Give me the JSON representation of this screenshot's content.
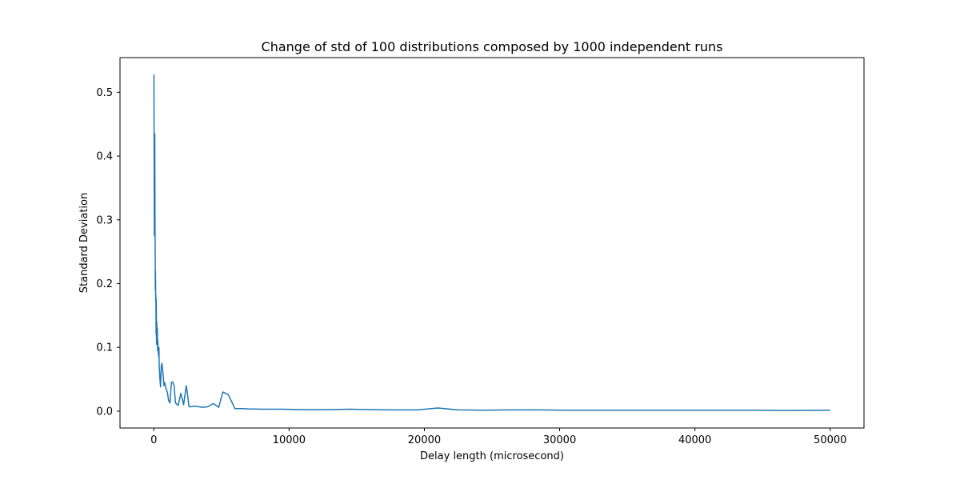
{
  "chart_data": {
    "type": "line",
    "title": "Change of std of 100 distributions composed by 1000 independent runs",
    "xlabel": "Delay length (microsecond)",
    "ylabel": "Standard Deviation",
    "xlim": [
      -2500,
      52500
    ],
    "ylim": [
      -0.0264,
      0.5544
    ],
    "xticks": [
      0,
      10000,
      20000,
      30000,
      40000,
      50000
    ],
    "xtick_labels": [
      "0",
      "10000",
      "20000",
      "30000",
      "40000",
      "50000"
    ],
    "yticks": [
      0.0,
      0.1,
      0.2,
      0.3,
      0.4,
      0.5
    ],
    "ytick_labels": [
      "0.0",
      "0.1",
      "0.2",
      "0.3",
      "0.4",
      "0.5"
    ],
    "grid": false,
    "legend": false,
    "series": [
      {
        "color": "#1f77b4",
        "x": [
          10,
          20,
          30,
          40,
          50,
          60,
          70,
          80,
          90,
          100,
          110,
          120,
          130,
          140,
          150,
          160,
          170,
          180,
          190,
          200,
          220,
          240,
          260,
          280,
          300,
          320,
          340,
          360,
          380,
          400,
          430,
          460,
          500,
          550,
          600,
          650,
          700,
          750,
          800,
          900,
          1000,
          1100,
          1200,
          1300,
          1400,
          1500,
          1600,
          1700,
          1800,
          2000,
          2200,
          2400,
          2500,
          2600,
          2800,
          3000,
          3300,
          3600,
          4000,
          4400,
          4800,
          5100,
          5500,
          6000,
          6500,
          7000,
          8000,
          9500,
          11000,
          13000,
          14500,
          16000,
          17500,
          19500,
          21000,
          22500,
          24500,
          26500,
          28500,
          30500,
          33000,
          35500,
          38000,
          40500,
          42500,
          44500,
          46500,
          48500,
          50000
        ],
        "y": [
          0.528,
          0.42,
          0.34,
          0.275,
          0.31,
          0.39,
          0.435,
          0.365,
          0.29,
          0.262,
          0.19,
          0.22,
          0.205,
          0.175,
          0.183,
          0.15,
          0.12,
          0.175,
          0.145,
          0.105,
          0.14,
          0.115,
          0.13,
          0.095,
          0.11,
          0.095,
          0.09,
          0.085,
          0.1,
          0.07,
          0.06,
          0.048,
          0.038,
          0.07,
          0.075,
          0.065,
          0.055,
          0.04,
          0.045,
          0.035,
          0.03,
          0.016,
          0.013,
          0.045,
          0.046,
          0.04,
          0.013,
          0.011,
          0.009,
          0.028,
          0.01,
          0.04,
          0.025,
          0.007,
          0.007,
          0.008,
          0.007,
          0.006,
          0.007,
          0.012,
          0.006,
          0.03,
          0.026,
          0.004,
          0.004,
          0.0035,
          0.003,
          0.003,
          0.0025,
          0.0025,
          0.003,
          0.0025,
          0.002,
          0.002,
          0.005,
          0.002,
          0.0015,
          0.002,
          0.002,
          0.0015,
          0.0015,
          0.0015,
          0.0015,
          0.0015,
          0.0015,
          0.0015,
          0.001,
          0.0012,
          0.0015
        ]
      }
    ]
  }
}
